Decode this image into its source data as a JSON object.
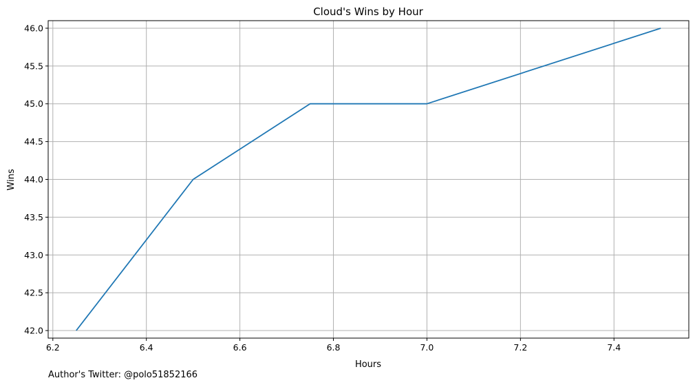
{
  "chart_data": {
    "type": "line",
    "title": "Cloud's Wins by Hour",
    "xlabel": "Hours",
    "ylabel": "Wins",
    "xlim": [
      6.19,
      7.56
    ],
    "ylim": [
      41.9,
      46.1
    ],
    "xticks": [
      6.2,
      6.4,
      6.6,
      6.8,
      7.0,
      7.2,
      7.4
    ],
    "xtick_labels": [
      "6.2",
      "6.4",
      "6.6",
      "6.8",
      "7.0",
      "7.2",
      "7.4"
    ],
    "yticks": [
      42.0,
      42.5,
      43.0,
      43.5,
      44.0,
      44.5,
      45.0,
      45.5,
      46.0
    ],
    "ytick_labels": [
      "42.0",
      "42.5",
      "43.0",
      "43.5",
      "44.0",
      "44.5",
      "45.0",
      "45.5",
      "46.0"
    ],
    "grid": true,
    "series": [
      {
        "color": "#1f77b4",
        "x": [
          6.25,
          6.5,
          6.75,
          7.0,
          7.5
        ],
        "y": [
          42,
          44,
          45,
          45,
          46
        ]
      }
    ]
  },
  "footer": {
    "text": "Author's Twitter: @polo51852166"
  }
}
